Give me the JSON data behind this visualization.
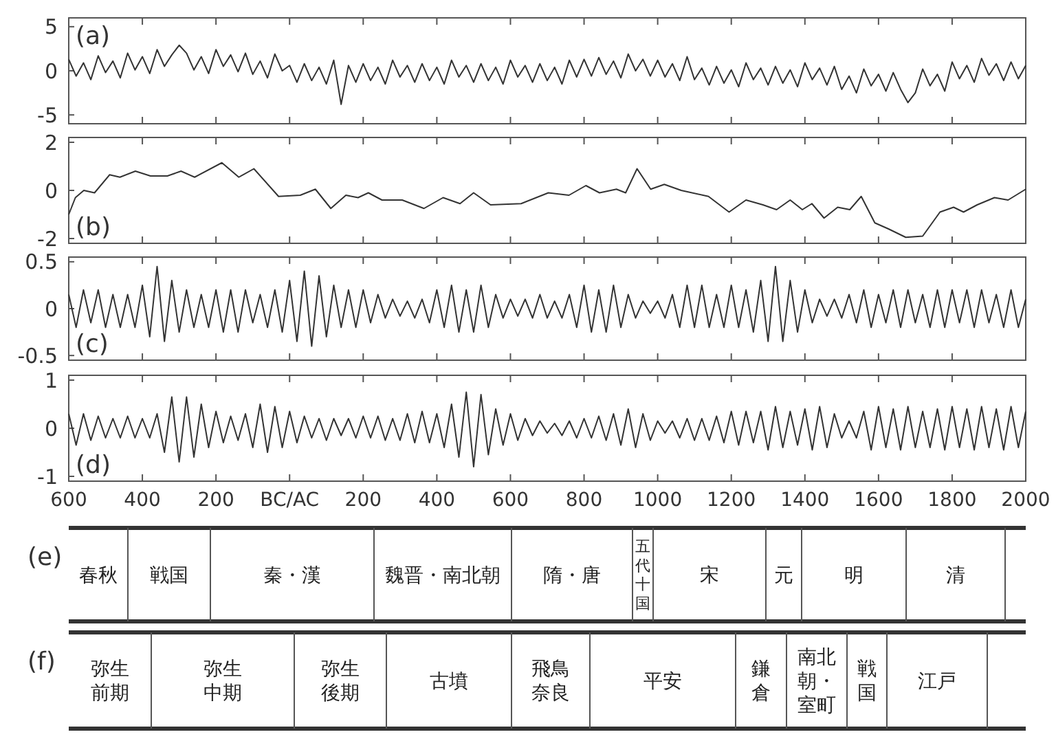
{
  "chart_data": [
    {
      "type": "line",
      "title": "(a)",
      "color": "#333333",
      "tick_labels": "y",
      "xlim": [
        -600,
        2000
      ],
      "ylim": [
        -6,
        6
      ],
      "yticks": [
        -5,
        0,
        5
      ],
      "xticks": [
        {
          "value": -600,
          "label": null
        },
        {
          "value": -400,
          "label": null
        },
        {
          "value": -200,
          "label": null
        },
        {
          "value": 0,
          "label": null
        },
        {
          "value": 200,
          "label": null
        },
        {
          "value": 400,
          "label": null
        },
        {
          "value": 600,
          "label": null
        },
        {
          "value": 800,
          "label": null
        },
        {
          "value": 1000,
          "label": null
        },
        {
          "value": 1200,
          "label": null
        },
        {
          "value": 1400,
          "label": null
        },
        {
          "value": 1600,
          "label": null
        },
        {
          "value": 1800,
          "label": null
        },
        {
          "value": 2000,
          "label": null
        }
      ],
      "x": [
        -600,
        -580,
        -560,
        -540,
        -520,
        -500,
        -480,
        -460,
        -440,
        -420,
        -400,
        -380,
        -360,
        -340,
        -320,
        -300,
        -280,
        -260,
        -240,
        -220,
        -200,
        -180,
        -160,
        -140,
        -120,
        -100,
        -80,
        -60,
        -40,
        -20,
        0,
        20,
        40,
        60,
        80,
        100,
        120,
        140,
        160,
        180,
        200,
        220,
        240,
        260,
        280,
        300,
        320,
        340,
        360,
        380,
        400,
        420,
        440,
        460,
        480,
        500,
        520,
        540,
        560,
        580,
        600,
        620,
        640,
        660,
        680,
        700,
        720,
        740,
        760,
        780,
        800,
        820,
        840,
        860,
        880,
        900,
        920,
        940,
        960,
        980,
        1000,
        1020,
        1040,
        1060,
        1080,
        1100,
        1120,
        1140,
        1160,
        1180,
        1200,
        1220,
        1240,
        1260,
        1280,
        1300,
        1320,
        1340,
        1360,
        1380,
        1400,
        1420,
        1440,
        1460,
        1480,
        1500,
        1520,
        1540,
        1560,
        1580,
        1600,
        1620,
        1640,
        1660,
        1680,
        1700,
        1720,
        1740,
        1760,
        1780,
        1800,
        1820,
        1840,
        1860,
        1880,
        1900,
        1920,
        1940,
        1960,
        1980,
        2000
      ],
      "values": [
        1.3,
        -0.6,
        0.9,
        -1.0,
        1.7,
        -0.2,
        1.1,
        -0.8,
        2.0,
        0.1,
        1.6,
        -0.3,
        2.4,
        0.5,
        1.8,
        2.9,
        2.0,
        0.1,
        1.6,
        -0.3,
        2.4,
        0.5,
        1.8,
        -0.1,
        2.0,
        -0.4,
        1.1,
        -0.8,
        1.9,
        0.0,
        0.6,
        -1.3,
        0.8,
        -1.1,
        0.4,
        -1.5,
        1.2,
        -3.8,
        0.6,
        -1.3,
        0.8,
        -1.1,
        0.4,
        -1.5,
        1.2,
        -0.7,
        0.6,
        -1.3,
        0.8,
        -1.1,
        0.4,
        -1.5,
        1.2,
        -0.7,
        0.6,
        -1.3,
        0.8,
        -1.1,
        0.4,
        -1.5,
        1.2,
        -0.7,
        0.6,
        -1.3,
        0.8,
        -1.1,
        0.4,
        -1.5,
        1.2,
        -0.7,
        1.3,
        -0.6,
        1.5,
        -0.4,
        1.1,
        -0.8,
        1.9,
        0.0,
        1.3,
        -0.6,
        1.2,
        -0.7,
        0.8,
        -1.1,
        1.6,
        -1.0,
        0.3,
        -1.6,
        0.5,
        -1.4,
        0.1,
        -1.8,
        0.9,
        -1.0,
        0.3,
        -1.6,
        0.5,
        -1.4,
        0.1,
        -1.8,
        0.9,
        -1.0,
        0.3,
        -1.6,
        0.5,
        -2.1,
        -0.6,
        -2.5,
        0.2,
        -1.7,
        -0.4,
        -2.3,
        -0.2,
        -2.1,
        -3.6,
        -2.5,
        0.2,
        -1.7,
        -0.4,
        -2.3,
        1.0,
        -0.9,
        0.6,
        -1.3,
        1.4,
        -0.5,
        0.8,
        -1.1,
        1.0,
        -0.9,
        0.6
      ]
    },
    {
      "type": "line",
      "title": "(b)",
      "color": "#333333",
      "tick_labels": "y",
      "xlim": [
        -600,
        2000
      ],
      "ylim": [
        -2.2,
        2.2
      ],
      "yticks": [
        -2,
        0,
        2
      ],
      "xticks": [
        {
          "value": -600,
          "label": null
        },
        {
          "value": -400,
          "label": null
        },
        {
          "value": -200,
          "label": null
        },
        {
          "value": 0,
          "label": null
        },
        {
          "value": 200,
          "label": null
        },
        {
          "value": 400,
          "label": null
        },
        {
          "value": 600,
          "label": null
        },
        {
          "value": 800,
          "label": null
        },
        {
          "value": 1000,
          "label": null
        },
        {
          "value": 1200,
          "label": null
        },
        {
          "value": 1400,
          "label": null
        },
        {
          "value": 1600,
          "label": null
        },
        {
          "value": 1800,
          "label": null
        },
        {
          "value": 2000,
          "label": null
        }
      ],
      "x": [
        -600,
        -582,
        -559,
        -530,
        -489,
        -461,
        -419,
        -378,
        -332,
        -295,
        -258,
        -184,
        -138,
        -97,
        -30,
        29,
        70,
        112,
        153,
        186,
        214,
        251,
        306,
        365,
        417,
        463,
        500,
        546,
        629,
        703,
        759,
        805,
        842,
        888,
        913,
        944,
        981,
        1018,
        1064,
        1138,
        1194,
        1240,
        1286,
        1323,
        1360,
        1393,
        1419,
        1452,
        1489,
        1522,
        1553,
        1590,
        1627,
        1674,
        1720,
        1767,
        1804,
        1831,
        1868,
        1915,
        1952,
        2000
      ],
      "values": [
        -1.0,
        -0.3,
        0,
        -0.1,
        0.65,
        0.55,
        0.8,
        0.6,
        0.6,
        0.8,
        0.55,
        1.15,
        0.55,
        0.9,
        -0.25,
        -0.2,
        0.05,
        -0.75,
        -0.2,
        -0.3,
        -0.1,
        -0.4,
        -0.4,
        -0.75,
        -0.3,
        -0.55,
        -0.1,
        -0.6,
        -0.55,
        -0.1,
        -0.2,
        0.2,
        -0.1,
        0.05,
        -0.1,
        0.9,
        0.05,
        0.25,
        0,
        -0.25,
        -0.9,
        -0.4,
        -0.6,
        -0.8,
        -0.4,
        -0.8,
        -0.55,
        -1.15,
        -0.7,
        -0.8,
        -0.25,
        -1.35,
        -1.6,
        -1.95,
        -1.9,
        -0.9,
        -0.7,
        -0.9,
        -0.6,
        -0.3,
        -0.4,
        0.05
      ]
    },
    {
      "type": "line",
      "title": "(c)",
      "color": "#333333",
      "tick_labels": "y",
      "xlim": [
        -600,
        2000
      ],
      "ylim": [
        -0.55,
        0.55
      ],
      "yticks": [
        -0.5,
        0,
        0.5
      ],
      "xticks": [
        {
          "value": -600,
          "label": null
        },
        {
          "value": -400,
          "label": null
        },
        {
          "value": -200,
          "label": null
        },
        {
          "value": 0,
          "label": null
        },
        {
          "value": 200,
          "label": null
        },
        {
          "value": 400,
          "label": null
        },
        {
          "value": 600,
          "label": null
        },
        {
          "value": 800,
          "label": null
        },
        {
          "value": 1000,
          "label": null
        },
        {
          "value": 1200,
          "label": null
        },
        {
          "value": 1400,
          "label": null
        },
        {
          "value": 1600,
          "label": null
        },
        {
          "value": 1800,
          "label": null
        },
        {
          "value": 2000,
          "label": null
        }
      ],
      "x": [
        -600,
        -580,
        -560,
        -540,
        -520,
        -500,
        -480,
        -460,
        -440,
        -420,
        -400,
        -380,
        -360,
        -340,
        -320,
        -300,
        -280,
        -260,
        -240,
        -220,
        -200,
        -180,
        -160,
        -140,
        -120,
        -100,
        -80,
        -60,
        -40,
        -20,
        0,
        20,
        40,
        60,
        80,
        100,
        120,
        140,
        160,
        180,
        200,
        220,
        240,
        260,
        280,
        300,
        320,
        340,
        360,
        380,
        400,
        420,
        440,
        460,
        480,
        500,
        520,
        540,
        560,
        580,
        600,
        620,
        640,
        660,
        680,
        700,
        720,
        740,
        760,
        780,
        800,
        820,
        840,
        860,
        880,
        900,
        920,
        940,
        960,
        980,
        1000,
        1020,
        1040,
        1060,
        1080,
        1100,
        1120,
        1140,
        1160,
        1180,
        1200,
        1220,
        1240,
        1260,
        1280,
        1300,
        1320,
        1340,
        1360,
        1380,
        1400,
        1420,
        1440,
        1460,
        1480,
        1500,
        1520,
        1540,
        1560,
        1580,
        1600,
        1620,
        1640,
        1660,
        1680,
        1700,
        1720,
        1740,
        1760,
        1780,
        1800,
        1820,
        1840,
        1860,
        1880,
        1900,
        1920,
        1940,
        1960,
        1980,
        2000
      ],
      "values": [
        0.15,
        -0.2,
        0.2,
        -0.15,
        0.2,
        -0.2,
        0.15,
        -0.2,
        0.15,
        -0.2,
        0.25,
        -0.3,
        0.45,
        -0.35,
        0.3,
        -0.25,
        0.2,
        -0.2,
        0.15,
        -0.2,
        0.2,
        -0.25,
        0.2,
        -0.25,
        0.2,
        -0.15,
        0.15,
        -0.2,
        0.2,
        -0.25,
        0.3,
        -0.35,
        0.4,
        -0.4,
        0.35,
        -0.3,
        0.25,
        -0.2,
        0.2,
        -0.2,
        0.2,
        -0.15,
        0.15,
        -0.1,
        0.1,
        -0.08,
        0.08,
        -0.1,
        0.1,
        -0.15,
        0.2,
        -0.2,
        0.25,
        -0.25,
        0.2,
        -0.25,
        0.25,
        -0.2,
        0.15,
        -0.1,
        0.1,
        -0.08,
        0.1,
        -0.1,
        0.15,
        -0.1,
        0.08,
        -0.1,
        0.15,
        -0.2,
        0.25,
        -0.25,
        0.2,
        -0.25,
        0.25,
        -0.2,
        0.15,
        -0.1,
        0.08,
        -0.05,
        0.08,
        -0.1,
        0.15,
        -0.2,
        0.25,
        -0.2,
        0.25,
        -0.2,
        0.15,
        -0.2,
        0.25,
        -0.2,
        0.2,
        -0.25,
        0.3,
        -0.35,
        0.45,
        -0.35,
        0.3,
        -0.25,
        0.2,
        -0.15,
        0.1,
        -0.08,
        0.1,
        -0.1,
        0.15,
        -0.15,
        0.2,
        -0.2,
        0.15,
        -0.15,
        0.2,
        -0.2,
        0.2,
        -0.15,
        0.15,
        -0.2,
        0.2,
        -0.2,
        0.2,
        -0.15,
        0.2,
        -0.2,
        0.2,
        -0.15,
        0.15,
        -0.2,
        0.2,
        -0.2,
        0.1
      ]
    },
    {
      "type": "line",
      "title": "(d)",
      "color": "#333333",
      "xlim": [
        -600,
        2000
      ],
      "ylim": [
        -1.1,
        1.1
      ],
      "yticks": [
        -1,
        0,
        1
      ],
      "xticks": [
        {
          "value": -600,
          "label": "600"
        },
        {
          "value": -400,
          "label": "400"
        },
        {
          "value": -200,
          "label": "200"
        },
        {
          "value": 0,
          "label": "BC/AC"
        },
        200,
        400,
        600,
        800,
        1000,
        1200,
        1400,
        1600,
        1800,
        2000
      ],
      "x": [
        -600,
        -580,
        -560,
        -540,
        -520,
        -500,
        -480,
        -460,
        -440,
        -420,
        -400,
        -380,
        -360,
        -340,
        -320,
        -300,
        -280,
        -260,
        -240,
        -220,
        -200,
        -180,
        -160,
        -140,
        -120,
        -100,
        -80,
        -60,
        -40,
        -20,
        0,
        20,
        40,
        60,
        80,
        100,
        120,
        140,
        160,
        180,
        200,
        220,
        240,
        260,
        280,
        300,
        320,
        340,
        360,
        380,
        400,
        420,
        440,
        460,
        480,
        500,
        520,
        540,
        560,
        580,
        600,
        620,
        640,
        660,
        680,
        700,
        720,
        740,
        760,
        780,
        800,
        820,
        840,
        860,
        880,
        900,
        920,
        940,
        960,
        980,
        1000,
        1020,
        1040,
        1060,
        1080,
        1100,
        1120,
        1140,
        1160,
        1180,
        1200,
        1220,
        1240,
        1260,
        1280,
        1300,
        1320,
        1340,
        1360,
        1380,
        1400,
        1420,
        1440,
        1460,
        1480,
        1500,
        1520,
        1540,
        1560,
        1580,
        1600,
        1620,
        1640,
        1660,
        1680,
        1700,
        1720,
        1740,
        1760,
        1780,
        1800,
        1820,
        1840,
        1860,
        1880,
        1900,
        1920,
        1940,
        1960,
        1980,
        2000
      ],
      "values": [
        0.3,
        -0.35,
        0.3,
        -0.25,
        0.25,
        -0.2,
        0.2,
        -0.2,
        0.25,
        -0.2,
        0.2,
        -0.2,
        0.3,
        -0.5,
        0.65,
        -0.7,
        0.65,
        -0.6,
        0.5,
        -0.4,
        0.35,
        -0.3,
        0.25,
        -0.25,
        0.3,
        -0.4,
        0.5,
        -0.5,
        0.45,
        -0.4,
        0.35,
        -0.3,
        0.25,
        -0.2,
        0.2,
        -0.25,
        0.2,
        -0.15,
        0.2,
        -0.2,
        0.25,
        -0.2,
        0.25,
        -0.25,
        0.2,
        -0.25,
        0.3,
        -0.3,
        0.35,
        -0.3,
        0.3,
        -0.4,
        0.5,
        -0.6,
        0.75,
        -0.8,
        0.7,
        -0.55,
        0.4,
        -0.35,
        0.3,
        -0.25,
        0.2,
        -0.15,
        0.15,
        -0.1,
        0.1,
        -0.15,
        0.15,
        -0.2,
        0.2,
        -0.2,
        0.25,
        -0.25,
        0.3,
        -0.35,
        0.4,
        -0.4,
        0.3,
        -0.25,
        0.15,
        -0.1,
        0.15,
        -0.2,
        0.2,
        -0.25,
        0.2,
        -0.25,
        0.25,
        -0.3,
        0.35,
        -0.35,
        0.35,
        -0.3,
        0.35,
        -0.45,
        0.45,
        -0.4,
        0.35,
        -0.35,
        0.4,
        -0.45,
        0.45,
        -0.4,
        0.3,
        -0.2,
        0.15,
        -0.2,
        0.35,
        -0.45,
        0.45,
        -0.4,
        0.4,
        -0.45,
        0.45,
        -0.4,
        0.35,
        -0.4,
        0.4,
        -0.45,
        0.45,
        -0.4,
        0.4,
        -0.45,
        0.45,
        -0.4,
        0.4,
        -0.45,
        0.45,
        -0.4,
        0.35
      ]
    },
    {
      "type": "other",
      "title": "(e)",
      "categories": [
        "春秋",
        "戦国",
        "秦・漢",
        "魏晋・南北朝",
        "隋・唐",
        "五代十国",
        "宋",
        "元",
        "明",
        "清"
      ]
    },
    {
      "type": "other",
      "title": "(f)",
      "categories": [
        "弥生前期",
        "弥生中期",
        "弥生後期",
        "古墳",
        "飛鳥奈良",
        "平安",
        "鎌倉",
        "南北朝・室町",
        "戦国",
        "江戸"
      ]
    }
  ]
}
